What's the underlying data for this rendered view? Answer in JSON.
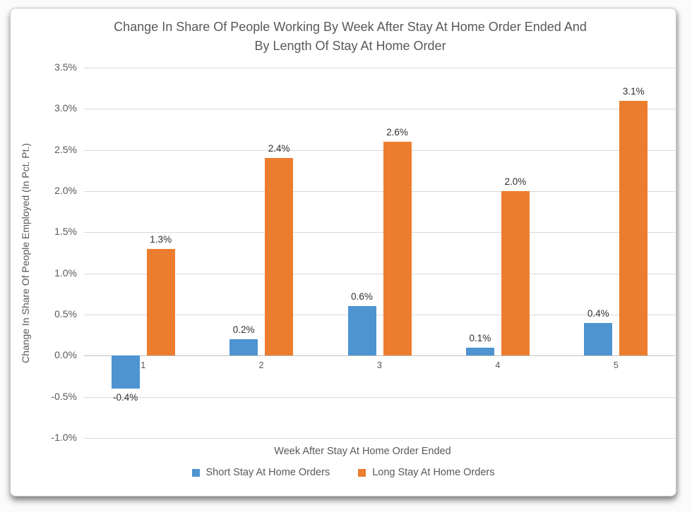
{
  "chart_data": {
    "type": "bar",
    "title": "Change In Share Of People Working By Week After Stay At Home Order Ended And By Length Of Stay At Home Order",
    "title_lines": [
      "Change In Share Of People Working By Week After Stay At Home Order Ended And",
      "By Length Of Stay At Home Order"
    ],
    "xlabel": "Week After Stay At Home Order Ended",
    "ylabel": "Change In Share Of People Employed (In Pct. Pt.)",
    "categories": [
      "1",
      "2",
      "3",
      "4",
      "5"
    ],
    "series": [
      {
        "name": "Short Stay At Home Orders",
        "color": "#4D94D1",
        "values": [
          -0.4,
          0.2,
          0.6,
          0.1,
          0.4
        ],
        "data_labels": [
          "-0.4%",
          "0.2%",
          "0.6%",
          "0.1%",
          "0.4%"
        ]
      },
      {
        "name": "Long Stay At Home Orders",
        "color": "#ED7D2E",
        "values": [
          1.3,
          2.4,
          2.6,
          2.0,
          3.1
        ],
        "data_labels": [
          "1.3%",
          "2.4%",
          "2.6%",
          "2.0%",
          "3.1%"
        ]
      }
    ],
    "ylim": [
      -1.0,
      3.5
    ],
    "y_tick_step": 0.5,
    "y_tick_labels": [
      "3.5%",
      "3.0%",
      "2.5%",
      "2.0%",
      "1.5%",
      "1.0%",
      "0.5%",
      "0.0%",
      "-0.5%",
      "-1.0%"
    ],
    "grid": true,
    "legend_position": "bottom",
    "colors": {
      "short_stay": "#4D94D1",
      "long_stay": "#ED7D2E",
      "text": "#595959",
      "data_label": "#2f2f2f",
      "gridline": "#d9d9d9",
      "zero_line": "#bfbfbf",
      "card_background": "#ffffff"
    }
  }
}
